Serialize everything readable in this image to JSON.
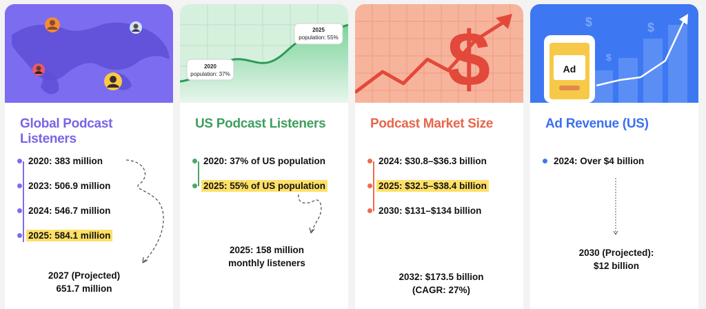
{
  "colors": {
    "purple": "#7b6cf0",
    "purple_title": "#7a63e6",
    "green": "#4aa86a",
    "green_title": "#3f9e5e",
    "orange": "#ee6a4e",
    "orange_title": "#e8654a",
    "blue": "#3d78f2",
    "blue_title": "#3a6ff0",
    "highlight": "#ffe066"
  },
  "cards": [
    {
      "title": "Global Podcast Listeners",
      "illustration": "world-map-with-avatars",
      "stats": [
        "2020: 383 million",
        "2023: 506.9 million",
        "2024: 546.7 million",
        "2025: 584.1 million"
      ],
      "highlighted_stat": "2025: 584.1 million",
      "projection_line1": "2027 (Projected)",
      "projection_line2": "651.7 million"
    },
    {
      "title": "US Podcast Listeners",
      "illustration": "rising-line-chart",
      "chart_label_2020_year": "2020",
      "chart_label_2020_value": "population: 37%",
      "chart_label_2025_year": "2025",
      "chart_label_2025_value": "population: 55%",
      "stats": [
        "2020: 37% of US population",
        "2025: 55% of US population"
      ],
      "highlighted_stat": "2025: 55% of US population",
      "projection_line1": "2025: 158 million",
      "projection_line2": "monthly listeners"
    },
    {
      "title": "Podcast Market Size",
      "illustration": "dollar-sign-with-rising-arrow",
      "stats": [
        "2024: $30.8–$36.3 billion",
        "2025: $32.5–$38.4 billion",
        "2030: $131–$134 billion"
      ],
      "highlighted_stat": "2025: $32.5–$38.4 billion",
      "projection_line1": "2032: $173.5 billion",
      "projection_line2": "(CAGR: 27%)"
    },
    {
      "title": "Ad Revenue (US)",
      "illustration": "phone-ad-with-growth-bars",
      "ad_label": "Ad",
      "stats": [
        "2024: Over $4 billion"
      ],
      "projection_line1": "2030 (Projected):",
      "projection_line2": "$12 billion"
    }
  ]
}
